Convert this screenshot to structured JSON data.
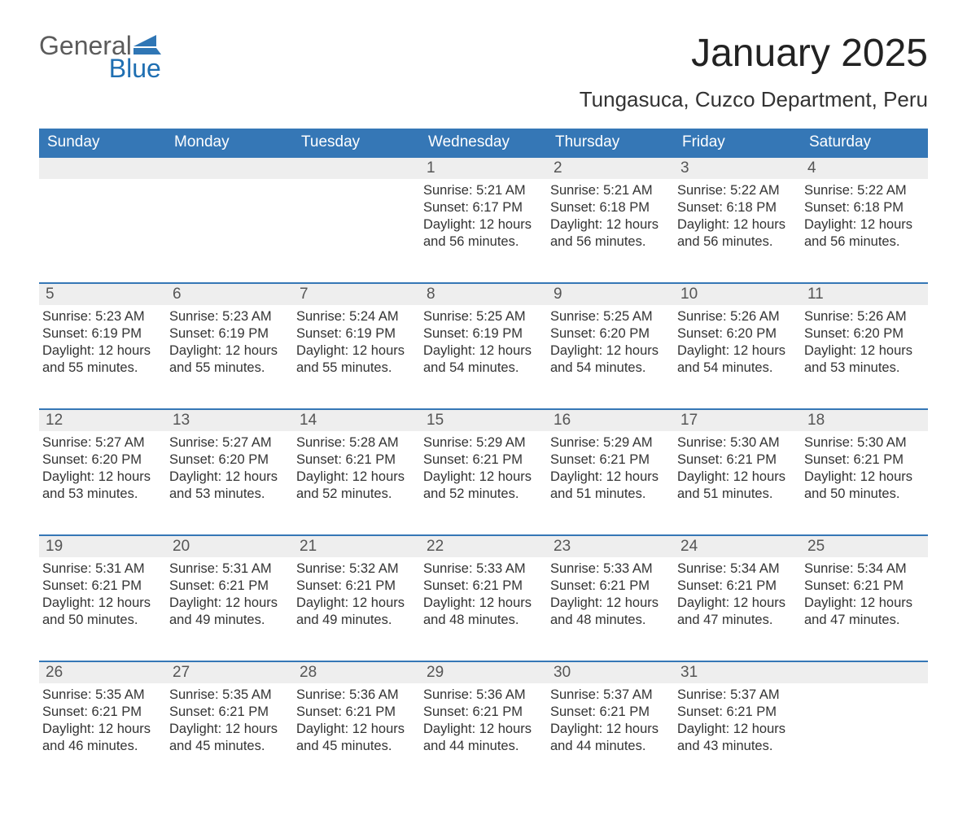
{
  "brand": {
    "general": "General",
    "blue": "Blue",
    "flag_color": "#2f76b5"
  },
  "title": "January 2025",
  "subtitle": "Tungasuca, Cuzco Department, Peru",
  "colors": {
    "header_bg": "#3577b6",
    "header_text": "#ffffff",
    "daynum_bg": "#eeeeee",
    "daynum_border": "#3577b6",
    "body_text": "#333333",
    "page_bg": "#ffffff"
  },
  "weekdays": [
    "Sunday",
    "Monday",
    "Tuesday",
    "Wednesday",
    "Thursday",
    "Friday",
    "Saturday"
  ],
  "weeks": [
    [
      null,
      null,
      null,
      {
        "n": "1",
        "sunrise": "Sunrise: 5:21 AM",
        "sunset": "Sunset: 6:17 PM",
        "daylight": "Daylight: 12 hours and 56 minutes."
      },
      {
        "n": "2",
        "sunrise": "Sunrise: 5:21 AM",
        "sunset": "Sunset: 6:18 PM",
        "daylight": "Daylight: 12 hours and 56 minutes."
      },
      {
        "n": "3",
        "sunrise": "Sunrise: 5:22 AM",
        "sunset": "Sunset: 6:18 PM",
        "daylight": "Daylight: 12 hours and 56 minutes."
      },
      {
        "n": "4",
        "sunrise": "Sunrise: 5:22 AM",
        "sunset": "Sunset: 6:18 PM",
        "daylight": "Daylight: 12 hours and 56 minutes."
      }
    ],
    [
      {
        "n": "5",
        "sunrise": "Sunrise: 5:23 AM",
        "sunset": "Sunset: 6:19 PM",
        "daylight": "Daylight: 12 hours and 55 minutes."
      },
      {
        "n": "6",
        "sunrise": "Sunrise: 5:23 AM",
        "sunset": "Sunset: 6:19 PM",
        "daylight": "Daylight: 12 hours and 55 minutes."
      },
      {
        "n": "7",
        "sunrise": "Sunrise: 5:24 AM",
        "sunset": "Sunset: 6:19 PM",
        "daylight": "Daylight: 12 hours and 55 minutes."
      },
      {
        "n": "8",
        "sunrise": "Sunrise: 5:25 AM",
        "sunset": "Sunset: 6:19 PM",
        "daylight": "Daylight: 12 hours and 54 minutes."
      },
      {
        "n": "9",
        "sunrise": "Sunrise: 5:25 AM",
        "sunset": "Sunset: 6:20 PM",
        "daylight": "Daylight: 12 hours and 54 minutes."
      },
      {
        "n": "10",
        "sunrise": "Sunrise: 5:26 AM",
        "sunset": "Sunset: 6:20 PM",
        "daylight": "Daylight: 12 hours and 54 minutes."
      },
      {
        "n": "11",
        "sunrise": "Sunrise: 5:26 AM",
        "sunset": "Sunset: 6:20 PM",
        "daylight": "Daylight: 12 hours and 53 minutes."
      }
    ],
    [
      {
        "n": "12",
        "sunrise": "Sunrise: 5:27 AM",
        "sunset": "Sunset: 6:20 PM",
        "daylight": "Daylight: 12 hours and 53 minutes."
      },
      {
        "n": "13",
        "sunrise": "Sunrise: 5:27 AM",
        "sunset": "Sunset: 6:20 PM",
        "daylight": "Daylight: 12 hours and 53 minutes."
      },
      {
        "n": "14",
        "sunrise": "Sunrise: 5:28 AM",
        "sunset": "Sunset: 6:21 PM",
        "daylight": "Daylight: 12 hours and 52 minutes."
      },
      {
        "n": "15",
        "sunrise": "Sunrise: 5:29 AM",
        "sunset": "Sunset: 6:21 PM",
        "daylight": "Daylight: 12 hours and 52 minutes."
      },
      {
        "n": "16",
        "sunrise": "Sunrise: 5:29 AM",
        "sunset": "Sunset: 6:21 PM",
        "daylight": "Daylight: 12 hours and 51 minutes."
      },
      {
        "n": "17",
        "sunrise": "Sunrise: 5:30 AM",
        "sunset": "Sunset: 6:21 PM",
        "daylight": "Daylight: 12 hours and 51 minutes."
      },
      {
        "n": "18",
        "sunrise": "Sunrise: 5:30 AM",
        "sunset": "Sunset: 6:21 PM",
        "daylight": "Daylight: 12 hours and 50 minutes."
      }
    ],
    [
      {
        "n": "19",
        "sunrise": "Sunrise: 5:31 AM",
        "sunset": "Sunset: 6:21 PM",
        "daylight": "Daylight: 12 hours and 50 minutes."
      },
      {
        "n": "20",
        "sunrise": "Sunrise: 5:31 AM",
        "sunset": "Sunset: 6:21 PM",
        "daylight": "Daylight: 12 hours and 49 minutes."
      },
      {
        "n": "21",
        "sunrise": "Sunrise: 5:32 AM",
        "sunset": "Sunset: 6:21 PM",
        "daylight": "Daylight: 12 hours and 49 minutes."
      },
      {
        "n": "22",
        "sunrise": "Sunrise: 5:33 AM",
        "sunset": "Sunset: 6:21 PM",
        "daylight": "Daylight: 12 hours and 48 minutes."
      },
      {
        "n": "23",
        "sunrise": "Sunrise: 5:33 AM",
        "sunset": "Sunset: 6:21 PM",
        "daylight": "Daylight: 12 hours and 48 minutes."
      },
      {
        "n": "24",
        "sunrise": "Sunrise: 5:34 AM",
        "sunset": "Sunset: 6:21 PM",
        "daylight": "Daylight: 12 hours and 47 minutes."
      },
      {
        "n": "25",
        "sunrise": "Sunrise: 5:34 AM",
        "sunset": "Sunset: 6:21 PM",
        "daylight": "Daylight: 12 hours and 47 minutes."
      }
    ],
    [
      {
        "n": "26",
        "sunrise": "Sunrise: 5:35 AM",
        "sunset": "Sunset: 6:21 PM",
        "daylight": "Daylight: 12 hours and 46 minutes."
      },
      {
        "n": "27",
        "sunrise": "Sunrise: 5:35 AM",
        "sunset": "Sunset: 6:21 PM",
        "daylight": "Daylight: 12 hours and 45 minutes."
      },
      {
        "n": "28",
        "sunrise": "Sunrise: 5:36 AM",
        "sunset": "Sunset: 6:21 PM",
        "daylight": "Daylight: 12 hours and 45 minutes."
      },
      {
        "n": "29",
        "sunrise": "Sunrise: 5:36 AM",
        "sunset": "Sunset: 6:21 PM",
        "daylight": "Daylight: 12 hours and 44 minutes."
      },
      {
        "n": "30",
        "sunrise": "Sunrise: 5:37 AM",
        "sunset": "Sunset: 6:21 PM",
        "daylight": "Daylight: 12 hours and 44 minutes."
      },
      {
        "n": "31",
        "sunrise": "Sunrise: 5:37 AM",
        "sunset": "Sunset: 6:21 PM",
        "daylight": "Daylight: 12 hours and 43 minutes."
      },
      null
    ]
  ]
}
